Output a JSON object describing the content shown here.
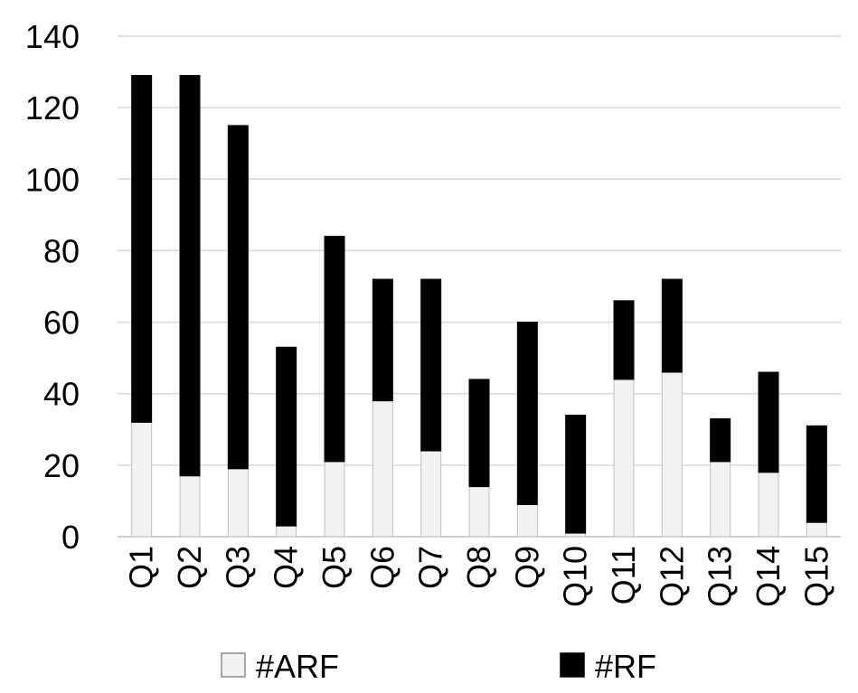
{
  "chart_data": {
    "type": "bar",
    "stacked": true,
    "categories": [
      "Q1",
      "Q2",
      "Q3",
      "Q4",
      "Q5",
      "Q6",
      "Q7",
      "Q8",
      "Q9",
      "Q10",
      "Q11",
      "Q12",
      "Q13",
      "Q14",
      "Q15"
    ],
    "series": [
      {
        "name": "#ARF",
        "color": "#f2f2f2",
        "values": [
          32,
          17,
          19,
          3,
          21,
          38,
          24,
          14,
          9,
          1,
          44,
          46,
          21,
          18,
          4
        ]
      },
      {
        "name": "#RF",
        "color": "#000000",
        "values": [
          97,
          112,
          96,
          50,
          63,
          34,
          48,
          30,
          51,
          33,
          22,
          26,
          12,
          28,
          27
        ]
      }
    ],
    "ylim": [
      0,
      140
    ],
    "yticks": [
      0,
      20,
      40,
      60,
      80,
      100,
      120,
      140
    ],
    "grid": true,
    "legend_position": "bottom"
  }
}
